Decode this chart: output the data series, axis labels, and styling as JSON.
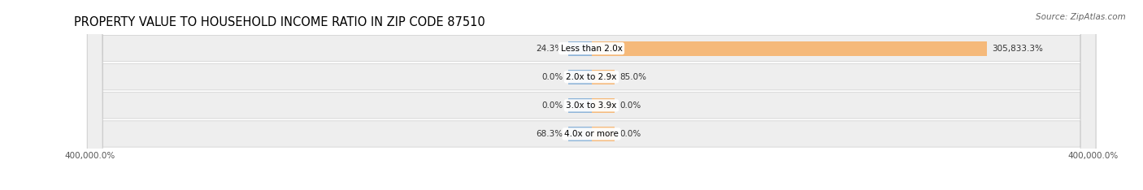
{
  "title": "PROPERTY VALUE TO HOUSEHOLD INCOME RATIO IN ZIP CODE 87510",
  "source": "Source: ZipAtlas.com",
  "categories": [
    "Less than 2.0x",
    "2.0x to 2.9x",
    "3.0x to 3.9x",
    "4.0x or more"
  ],
  "without_mortgage": [
    24.3,
    0.0,
    0.0,
    68.3
  ],
  "with_mortgage": [
    305833.3,
    85.0,
    0.0,
    0.0
  ],
  "without_mortgage_color": "#8eb4d8",
  "with_mortgage_color": "#f5b97a",
  "row_bg_color": "#eeeeee",
  "row_edge_color": "#cccccc",
  "xlim": 400000,
  "xlabel_left": "400,000.0%",
  "xlabel_right": "400,000.0%",
  "title_fontsize": 10.5,
  "source_fontsize": 7.5,
  "label_fontsize": 7.5,
  "cat_fontsize": 7.5,
  "tick_fontsize": 7.5,
  "legend_fontsize": 7.5,
  "min_bar_width": 18000
}
